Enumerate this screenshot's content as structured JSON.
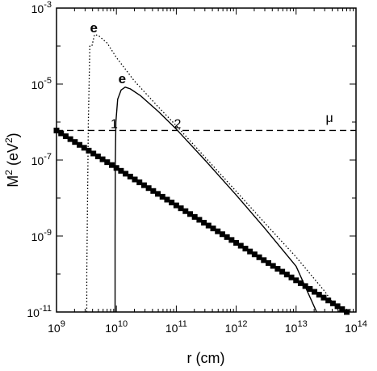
{
  "chart_data": {
    "type": "line",
    "x_scale": "log",
    "y_scale": "log",
    "xlim": [
      1000000000.0,
      100000000000000.0
    ],
    "ylim": [
      1e-11,
      0.001
    ],
    "xlabel": {
      "main": "r (cm)"
    },
    "ylabel": {
      "base": "M",
      "sup1": "2",
      "mid": " (eV",
      "sup2": "2",
      "end": ")"
    },
    "x_ticks": [
      {
        "value": 1000000000.0,
        "base": "10",
        "exp": "9"
      },
      {
        "value": 10000000000.0,
        "base": "10",
        "exp": "10"
      },
      {
        "value": 100000000000.0,
        "base": "10",
        "exp": "11"
      },
      {
        "value": 1000000000000.0,
        "base": "10",
        "exp": "12"
      },
      {
        "value": 10000000000000.0,
        "base": "10",
        "exp": "13"
      },
      {
        "value": 100000000000000.0,
        "base": "10",
        "exp": "14"
      }
    ],
    "y_ticks": [
      {
        "value": 1e-11,
        "base": "10",
        "exp": "-11"
      },
      {
        "value": 1e-09,
        "base": "10",
        "exp": "-9"
      },
      {
        "value": 1e-07,
        "base": "10",
        "exp": "-7"
      },
      {
        "value": 1e-05,
        "base": "10",
        "exp": "-5"
      },
      {
        "value": 0.001,
        "base": "10",
        "exp": "-3"
      }
    ],
    "grid": false,
    "series": [
      {
        "style": "dotted",
        "points": [
          [
            3200000000.0,
            1e-11
          ],
          [
            3200000000.0,
            1e-10
          ],
          [
            3300000000.0,
            1e-08
          ],
          [
            3400000000.0,
            1e-06
          ],
          [
            3600000000.0,
            0.0001
          ],
          [
            3900000000.0,
            0.0001
          ],
          [
            4300000000.0,
            0.0002
          ],
          [
            5000000000.0,
            0.00019
          ],
          [
            7000000000.0,
            0.00012
          ],
          [
            10000000000.0,
            5e-05
          ],
          [
            20000000000.0,
            1.2e-05
          ],
          [
            50000000000.0,
            2.5e-06
          ],
          [
            100000000000.0,
            8e-07
          ],
          [
            300000000000.0,
            1.2e-07
          ],
          [
            1000000000000.0,
            1.5e-08
          ],
          [
            3000000000000.0,
            2.2e-09
          ],
          [
            10000000000000.0,
            2.8e-10
          ],
          [
            30000000000000.0,
            3.5e-11
          ],
          [
            53000000000000.0,
            1e-11
          ]
        ]
      },
      {
        "style": "solid",
        "points": [
          [
            9500000000.0,
            1e-11
          ],
          [
            9500000000.0,
            1e-09
          ],
          [
            9600000000.0,
            1e-07
          ],
          [
            9800000000.0,
            1e-06
          ],
          [
            10500000000.0,
            4e-06
          ],
          [
            12000000000.0,
            7e-06
          ],
          [
            14000000000.0,
            8.3e-06
          ],
          [
            17000000000.0,
            7.5e-06
          ],
          [
            25000000000.0,
            5e-06
          ],
          [
            50000000000.0,
            1.9e-06
          ],
          [
            100000000000.0,
            6.5e-07
          ],
          [
            300000000000.0,
            1e-07
          ],
          [
            1000000000000.0,
            1.2e-08
          ],
          [
            3000000000000.0,
            1.6e-09
          ],
          [
            10000000000000.0,
            1.6e-10
          ],
          [
            22000000000000.0,
            1e-11
          ]
        ]
      },
      {
        "style": "dashed",
        "points": [
          [
            1000000000.0,
            6e-07
          ],
          [
            100000000000000.0,
            6e-07
          ]
        ]
      },
      {
        "style": "square-markers",
        "points": [
          [
            1000000000.0,
            6e-07
          ],
          [
            70000000000000.0,
            1e-11
          ]
        ],
        "marker_count": 64
      }
    ],
    "annotations": [
      {
        "text": "e",
        "x": 4200000000.0,
        "y": 0.00023,
        "style": "bold"
      },
      {
        "text": "e",
        "x": 12500000000.0,
        "y": 1.05e-05,
        "style": "bold"
      },
      {
        "text": "μ",
        "x": 36000000000000.0,
        "y": 1e-06,
        "style": "normal"
      },
      {
        "text": "1",
        "x": 9200000000.0,
        "y": 6.9e-07,
        "style": "normal"
      },
      {
        "text": "2",
        "x": 105000000000.0,
        "y": 6.9e-07,
        "style": "normal"
      }
    ]
  }
}
